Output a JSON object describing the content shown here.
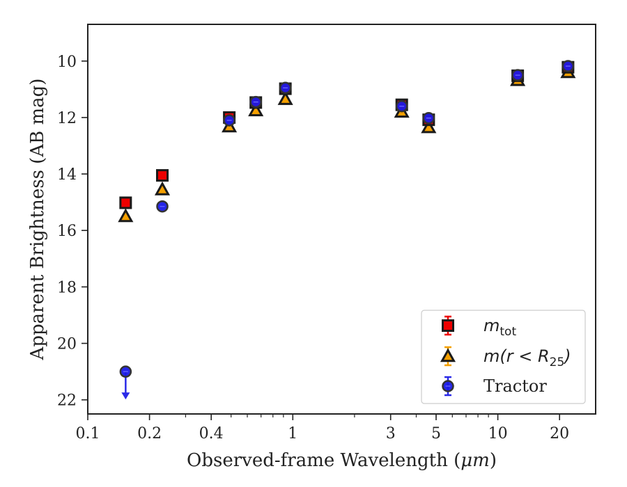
{
  "chart_data": {
    "type": "scatter",
    "xlabel_prefix": "Observed-frame Wavelength (",
    "xlabel_unit": "μm",
    "xlabel_suffix": ")",
    "ylabel": "Apparent Brightness (AB mag)",
    "x_scale": "log",
    "xlim": [
      0.1,
      30
    ],
    "ylim": [
      22.5,
      8.7
    ],
    "y_inverted": true,
    "x_ticks": [
      {
        "value": 0.1,
        "label": "0.1"
      },
      {
        "value": 0.2,
        "label": "0.2"
      },
      {
        "value": 0.4,
        "label": "0.4"
      },
      {
        "value": 1,
        "label": "1"
      },
      {
        "value": 3,
        "label": "3"
      },
      {
        "value": 5,
        "label": "5"
      },
      {
        "value": 10,
        "label": "10"
      },
      {
        "value": 20,
        "label": "20"
      }
    ],
    "y_ticks": [
      10,
      12,
      14,
      16,
      18,
      20,
      22
    ],
    "grid": false,
    "legend_position": "lower-right",
    "series": [
      {
        "name": "m_tot",
        "legend_label": {
          "symbol": "m",
          "subscript": "tot"
        },
        "marker": "square",
        "face_color": "#ee0000",
        "edge_color": "#1a1a1a",
        "error_color": "#ee0000",
        "points": [
          {
            "x": 0.153,
            "y": 15.02
          },
          {
            "x": 0.231,
            "y": 14.05
          },
          {
            "x": 0.49,
            "y": 12.0
          },
          {
            "x": 0.66,
            "y": 11.47
          },
          {
            "x": 0.92,
            "y": 10.98
          },
          {
            "x": 3.4,
            "y": 11.55
          },
          {
            "x": 4.6,
            "y": 12.08
          },
          {
            "x": 12.5,
            "y": 10.52
          },
          {
            "x": 22.0,
            "y": 10.22
          }
        ]
      },
      {
        "name": "m(r < R_25)",
        "legend_label": {
          "symbol": "m(r < R",
          "subscript": "25",
          "suffix": ")"
        },
        "marker": "triangle",
        "face_color": "#f5a000",
        "edge_color": "#1a1a1a",
        "error_color": "#f5a000",
        "points": [
          {
            "x": 0.153,
            "y": 15.5
          },
          {
            "x": 0.231,
            "y": 14.55
          },
          {
            "x": 0.49,
            "y": 12.32
          },
          {
            "x": 0.66,
            "y": 11.75
          },
          {
            "x": 0.92,
            "y": 11.35
          },
          {
            "x": 3.4,
            "y": 11.8
          },
          {
            "x": 4.6,
            "y": 12.35
          },
          {
            "x": 12.5,
            "y": 10.68
          },
          {
            "x": 22.0,
            "y": 10.4
          }
        ]
      },
      {
        "name": "Tractor",
        "legend_label": {
          "text": "Tractor"
        },
        "marker": "circle",
        "face_color": "#1a1ae6",
        "edge_color": "#333333",
        "error_color": "#2a2ae8",
        "points": [
          {
            "x": 0.153,
            "y": 21.0,
            "upper_limit": true
          },
          {
            "x": 0.231,
            "y": 15.15
          },
          {
            "x": 0.49,
            "y": 12.1
          },
          {
            "x": 0.66,
            "y": 11.45
          },
          {
            "x": 0.92,
            "y": 10.95
          },
          {
            "x": 3.4,
            "y": 11.6
          },
          {
            "x": 4.6,
            "y": 12.02
          },
          {
            "x": 12.5,
            "y": 10.5
          },
          {
            "x": 22.0,
            "y": 10.18
          }
        ]
      }
    ]
  }
}
